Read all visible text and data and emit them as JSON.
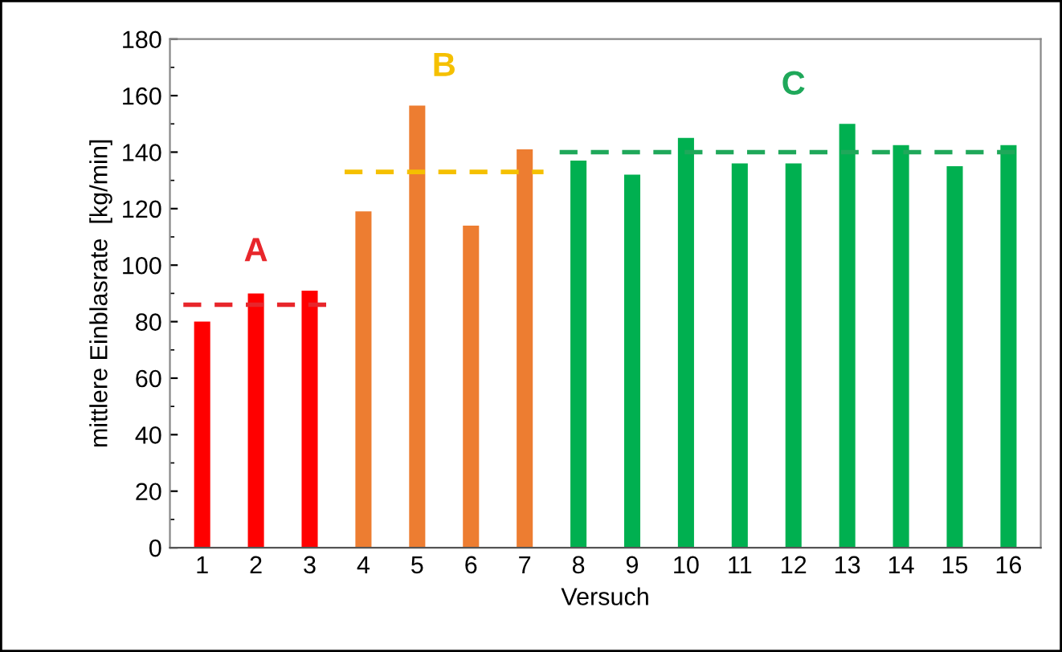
{
  "chart_data": {
    "type": "bar",
    "xlabel": "Versuch",
    "ylabel": "mittlere Einblasrate  [kg/min]",
    "categories": [
      "1",
      "2",
      "3",
      "4",
      "5",
      "6",
      "7",
      "8",
      "9",
      "10",
      "11",
      "12",
      "13",
      "14",
      "15",
      "16"
    ],
    "series": [
      {
        "color": "#ff0000",
        "values": [
          80,
          90,
          91,
          null,
          null,
          null,
          null,
          null,
          null,
          null,
          null,
          null,
          null,
          null,
          null,
          null
        ]
      },
      {
        "color": "#ed7d31",
        "values": [
          null,
          null,
          null,
          119,
          156.5,
          114,
          141,
          null,
          null,
          null,
          null,
          null,
          null,
          null,
          null,
          null
        ]
      },
      {
        "color": "#00b050",
        "values": [
          null,
          null,
          null,
          null,
          null,
          null,
          null,
          137,
          132,
          145,
          136,
          136,
          150,
          142.5,
          135,
          142.5
        ]
      }
    ],
    "ref_lines": [
      {
        "axis": "y",
        "value": 86,
        "label": "A",
        "color": "#e8262b",
        "line_style": "dashed"
      },
      {
        "axis": "y",
        "value": 133,
        "label": "B",
        "color": "#f5c000",
        "line_style": "dashed"
      },
      {
        "axis": "y",
        "value": 140,
        "label": "C",
        "color": "#1fa85a",
        "line_style": "dashed"
      }
    ],
    "ylim": [
      0,
      180
    ],
    "yticks": [
      0,
      20,
      40,
      60,
      80,
      100,
      120,
      140,
      160,
      180
    ],
    "grid": false,
    "legend": false
  }
}
